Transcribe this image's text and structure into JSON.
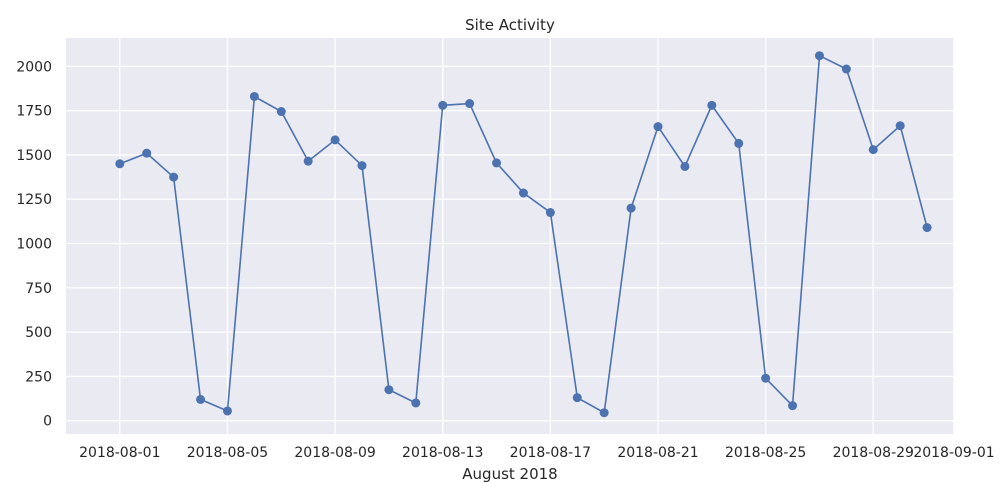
{
  "chart_data": {
    "type": "line",
    "title": "Site Activity",
    "xlabel": "August 2018",
    "ylabel": "",
    "x_ticks": [
      "2018-08-01",
      "2018-08-05",
      "2018-08-09",
      "2018-08-13",
      "2018-08-17",
      "2018-08-21",
      "2018-08-25",
      "2018-08-29",
      "2018-09-01"
    ],
    "y_ticks": [
      0,
      250,
      500,
      750,
      1000,
      1250,
      1500,
      1750,
      2000
    ],
    "x": [
      "2018-08-01",
      "2018-08-02",
      "2018-08-03",
      "2018-08-04",
      "2018-08-05",
      "2018-08-06",
      "2018-08-07",
      "2018-08-08",
      "2018-08-09",
      "2018-08-10",
      "2018-08-11",
      "2018-08-12",
      "2018-08-13",
      "2018-08-14",
      "2018-08-15",
      "2018-08-16",
      "2018-08-17",
      "2018-08-18",
      "2018-08-19",
      "2018-08-20",
      "2018-08-21",
      "2018-08-22",
      "2018-08-23",
      "2018-08-24",
      "2018-08-25",
      "2018-08-26",
      "2018-08-27",
      "2018-08-28",
      "2018-08-29",
      "2018-08-30",
      "2018-08-31"
    ],
    "series": [
      {
        "values": [
          1450,
          1510,
          1375,
          120,
          55,
          1830,
          1745,
          1465,
          1585,
          1440,
          175,
          100,
          1780,
          1790,
          1455,
          1285,
          1175,
          130,
          45,
          1200,
          1660,
          1435,
          1780,
          1565,
          240,
          85,
          2060,
          1985,
          1530,
          1665,
          1090
        ],
        "color": "#4c72b0"
      }
    ],
    "xlim": [
      "2018-07-30",
      "2018-09-01"
    ],
    "ylim": [
      -75,
      2160
    ],
    "grid": true,
    "background": "#eaeaf2",
    "grid_color": "#ffffff",
    "text_color": "#262626"
  }
}
